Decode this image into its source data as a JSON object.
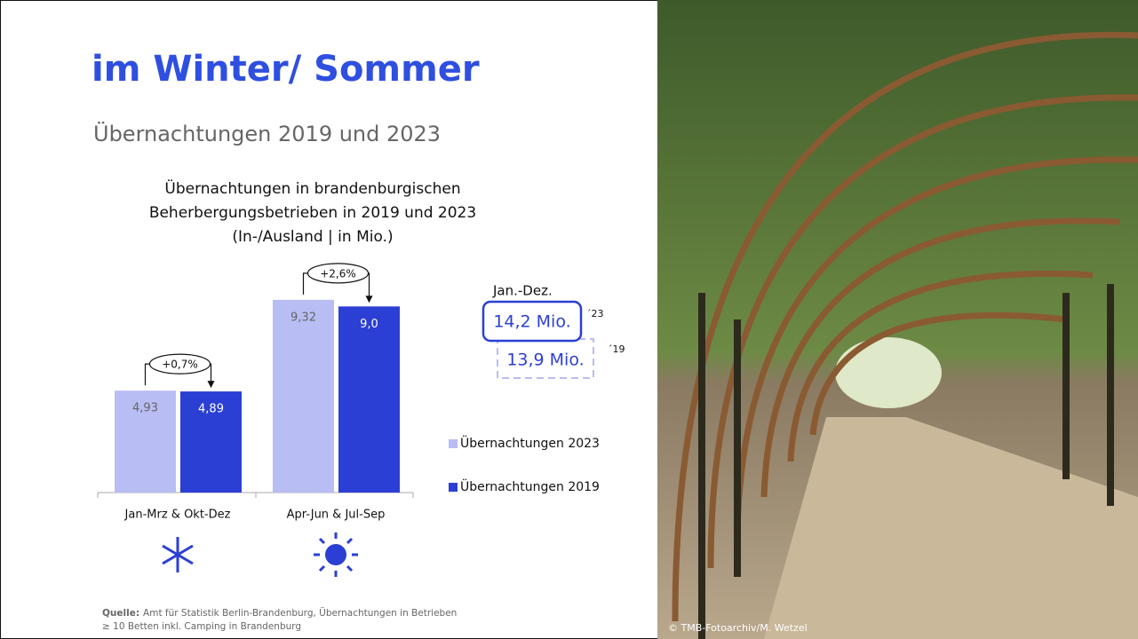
{
  "slide": {
    "title": "im Winter/ Sommer",
    "subtitle": "Übernachtungen 2019 und 2023",
    "totals": {
      "label": "Jan.-Dez.",
      "items": [
        {
          "value": "14,2 Mio.",
          "year": "´23"
        },
        {
          "value": "13,9 Mio.",
          "year": "´19"
        }
      ]
    },
    "source": {
      "label": "Quelle:",
      "lines": [
        "Amt für Statistik Berlin-Brandenburg, Übernachtungen in Betrieben",
        "≥ 10 Betten inkl. Camping in Brandenburg"
      ]
    },
    "photo_credit": "© TMB-Fotoarchiv/M. Wetzel"
  },
  "chart_data": {
    "type": "bar",
    "title": [
      "Übernachtungen in brandenburgischen",
      "Beherbergungsbetrieben in 2019 und 2023",
      "(In-/Ausland | in Mio.)"
    ],
    "categories": [
      "Jan-Mrz & Okt-Dez",
      "Apr-Jun & Jul-Sep"
    ],
    "series": [
      {
        "name": "Übernachtungen 2023",
        "color": "#b8bdf4",
        "values": [
          4.93,
          9.32
        ],
        "value_labels": [
          "4,93",
          "9,32"
        ]
      },
      {
        "name": "Übernachtungen 2019",
        "color": "#2b3fd4",
        "values": [
          4.89,
          9.0
        ],
        "value_labels": [
          "4,89",
          "9,0"
        ]
      }
    ],
    "annotations": [
      "+0,7%",
      "+2,6%"
    ],
    "ylim": [
      0,
      10
    ]
  }
}
